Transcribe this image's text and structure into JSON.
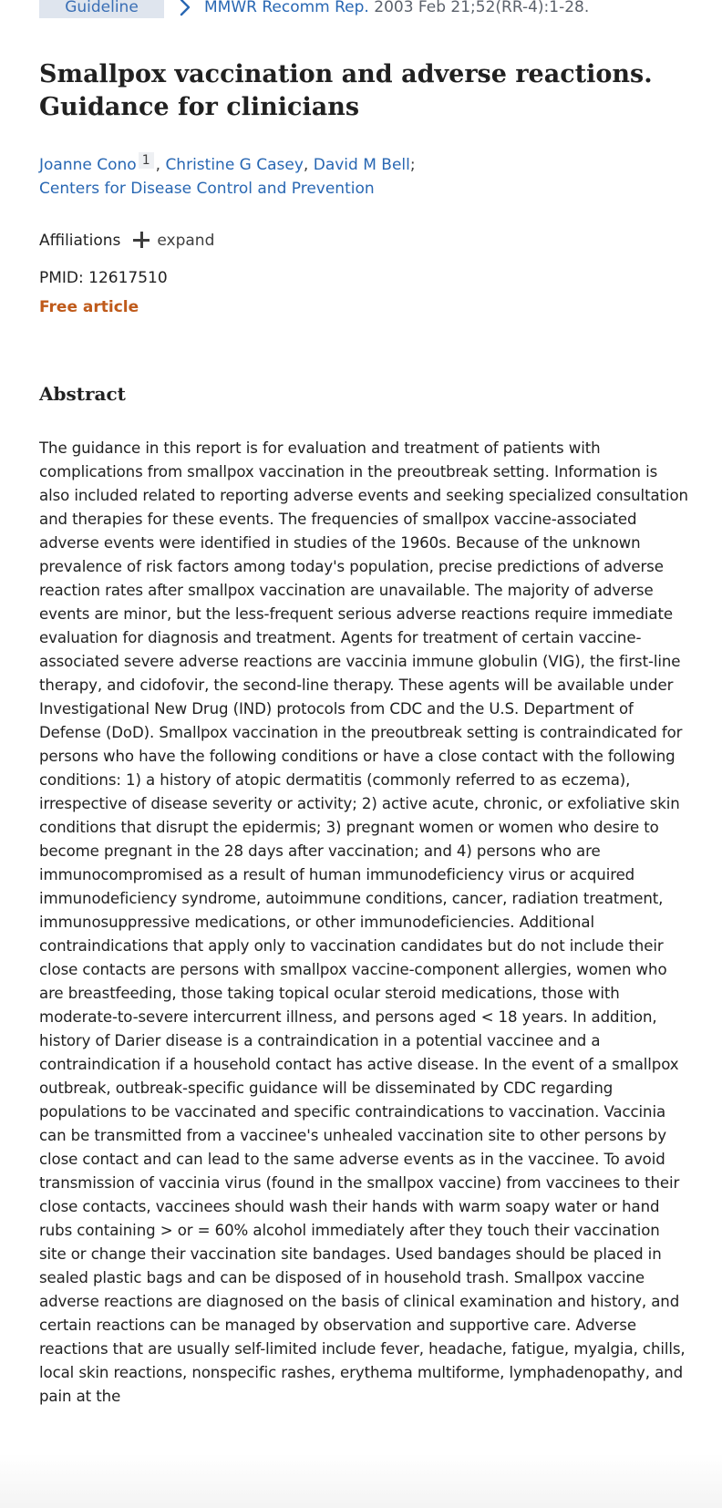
{
  "article_type": "Guideline",
  "citation": {
    "journal": "MMWR Recomm Rep.",
    "details": " 2003 Feb 21;52(RR-4):1-28."
  },
  "title": "Smallpox vaccination and adverse reactions. Guidance for clinicians",
  "authors": [
    {
      "name": "Joanne Cono",
      "sup": "1"
    },
    {
      "name": "Christine G Casey"
    },
    {
      "name": "David M Bell"
    }
  ],
  "author_separator": ", ",
  "author_terminator": ";",
  "collective_author": "Centers for Disease Control and Prevention",
  "affiliations": {
    "label": "Affiliations",
    "expand_label": "expand"
  },
  "pmid": "PMID: 12617510",
  "free_article": "Free article",
  "abstract": {
    "heading": "Abstract",
    "text": "The guidance in this report is for evaluation and treatment of patients with complications from smallpox vaccination in the preoutbreak setting. Information is also included related to reporting adverse events and seeking specialized consultation and therapies for these events. The frequencies of smallpox vaccine-associated adverse events were identified in studies of the 1960s. Because of the unknown prevalence of risk factors among today's population, precise predictions of adverse reaction rates after smallpox vaccination are unavailable. The majority of adverse events are minor, but the less-frequent serious adverse reactions require immediate evaluation for diagnosis and treatment. Agents for treatment of certain vaccine-associated severe adverse reactions are vaccinia immune globulin (VIG), the first-line therapy, and cidofovir, the second-line therapy. These agents will be available under Investigational New Drug (IND) protocols from CDC and the U.S. Department of Defense (DoD). Smallpox vaccination in the preoutbreak setting is contraindicated for persons who have the following conditions or have a close contact with the following conditions: 1) a history of atopic dermatitis (commonly referred to as eczema), irrespective of disease severity or activity; 2) active acute, chronic, or exfoliative skin conditions that disrupt the epidermis; 3) pregnant women or women who desire to become pregnant in the 28 days after vaccination; and 4) persons who are immunocompromised as a result of human immunodeficiency virus or acquired immunodeficiency syndrome, autoimmune conditions, cancer, radiation treatment, immunosuppressive medications, or other immunodeficiencies. Additional contraindications that apply only to vaccination candidates but do not include their close contacts are persons with smallpox vaccine-component allergies, women who are breastfeeding, those taking topical ocular steroid medications, those with moderate-to-severe intercurrent illness, and persons aged < 18 years. In addition, history of Darier disease is a contraindication in a potential vaccinee and a contraindication if a household contact has active disease. In the event of a smallpox outbreak, outbreak-specific guidance will be disseminated by CDC regarding populations to be vaccinated and specific contraindications to vaccination. Vaccinia can be transmitted from a vaccinee's unhealed vaccination site to other persons by close contact and can lead to the same adverse events as in the vaccinee. To avoid transmission of vaccinia virus (found in the smallpox vaccine) from vaccinees to their close contacts, vaccinees should wash their hands with warm soapy water or hand rubs containing > or = 60% alcohol immediately after they touch their vaccination site or change their vaccination site bandages. Used bandages should be placed in sealed plastic bags and can be disposed of in household trash. Smallpox vaccine adverse reactions are diagnosed on the basis of clinical examination and history, and certain reactions can be managed by observation and supportive care. Adverse reactions that are usually self-limited include fever, headache, fatigue, myalgia, chills, local skin reactions, nonspecific rashes, erythema multiforme, lymphadenopathy, and pain at the"
  },
  "icons": {
    "breadcrumb": "chevron-right-icon",
    "affiliations_toggle": "plus-icon"
  },
  "colors": {
    "link": "#2867b3",
    "badge_bg": "#dfe5ee",
    "free_article": "#bf5a1a"
  }
}
